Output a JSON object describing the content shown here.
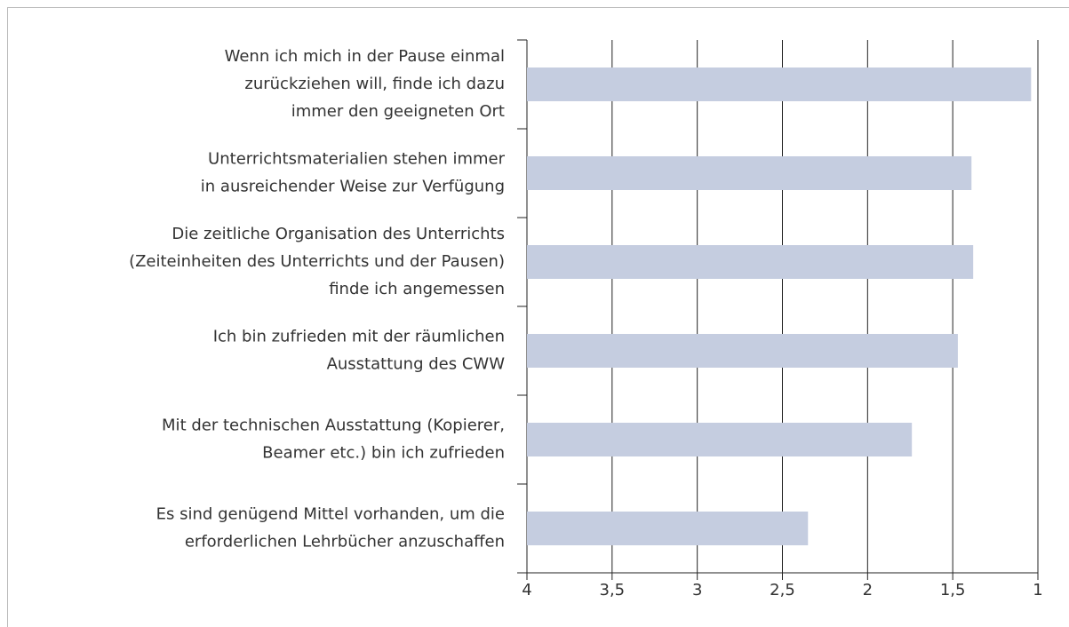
{
  "chart_data": {
    "type": "bar",
    "orientation": "horizontal",
    "categories": [
      "Wenn ich mich in der Pause einmal\nzurückziehen will, finde ich dazu\nimmer den geeigneten Ort",
      "Unterrichtsmaterialien stehen immer\nin ausreichender Weise zur Verfügung",
      "Die zeitliche Organisation des Unterrichts\n(Zeiteinheiten des Unterrichts und der Pausen)\nfinde ich angemessen",
      "Ich bin zufrieden mit der räumlichen\nAusstattung des CWW",
      "Mit der technischen Ausstattung (Kopierer,\nBeamer etc.) bin ich zufrieden",
      "Es sind genügend Mittel vorhanden, um die\nerforderlichen Lehrbücher anzuschaffen"
    ],
    "values": [
      1.04,
      1.39,
      1.38,
      1.47,
      1.74,
      2.35
    ],
    "color": "#c5cde0",
    "xlim": [
      4,
      1
    ],
    "xticks": [
      4,
      {
        "value": 3.5,
        "label": "3,5"
      },
      3,
      {
        "value": 2.5,
        "label": "2,5"
      },
      2,
      {
        "value": 1.5,
        "label": "1,5"
      },
      1
    ],
    "grid": true
  }
}
